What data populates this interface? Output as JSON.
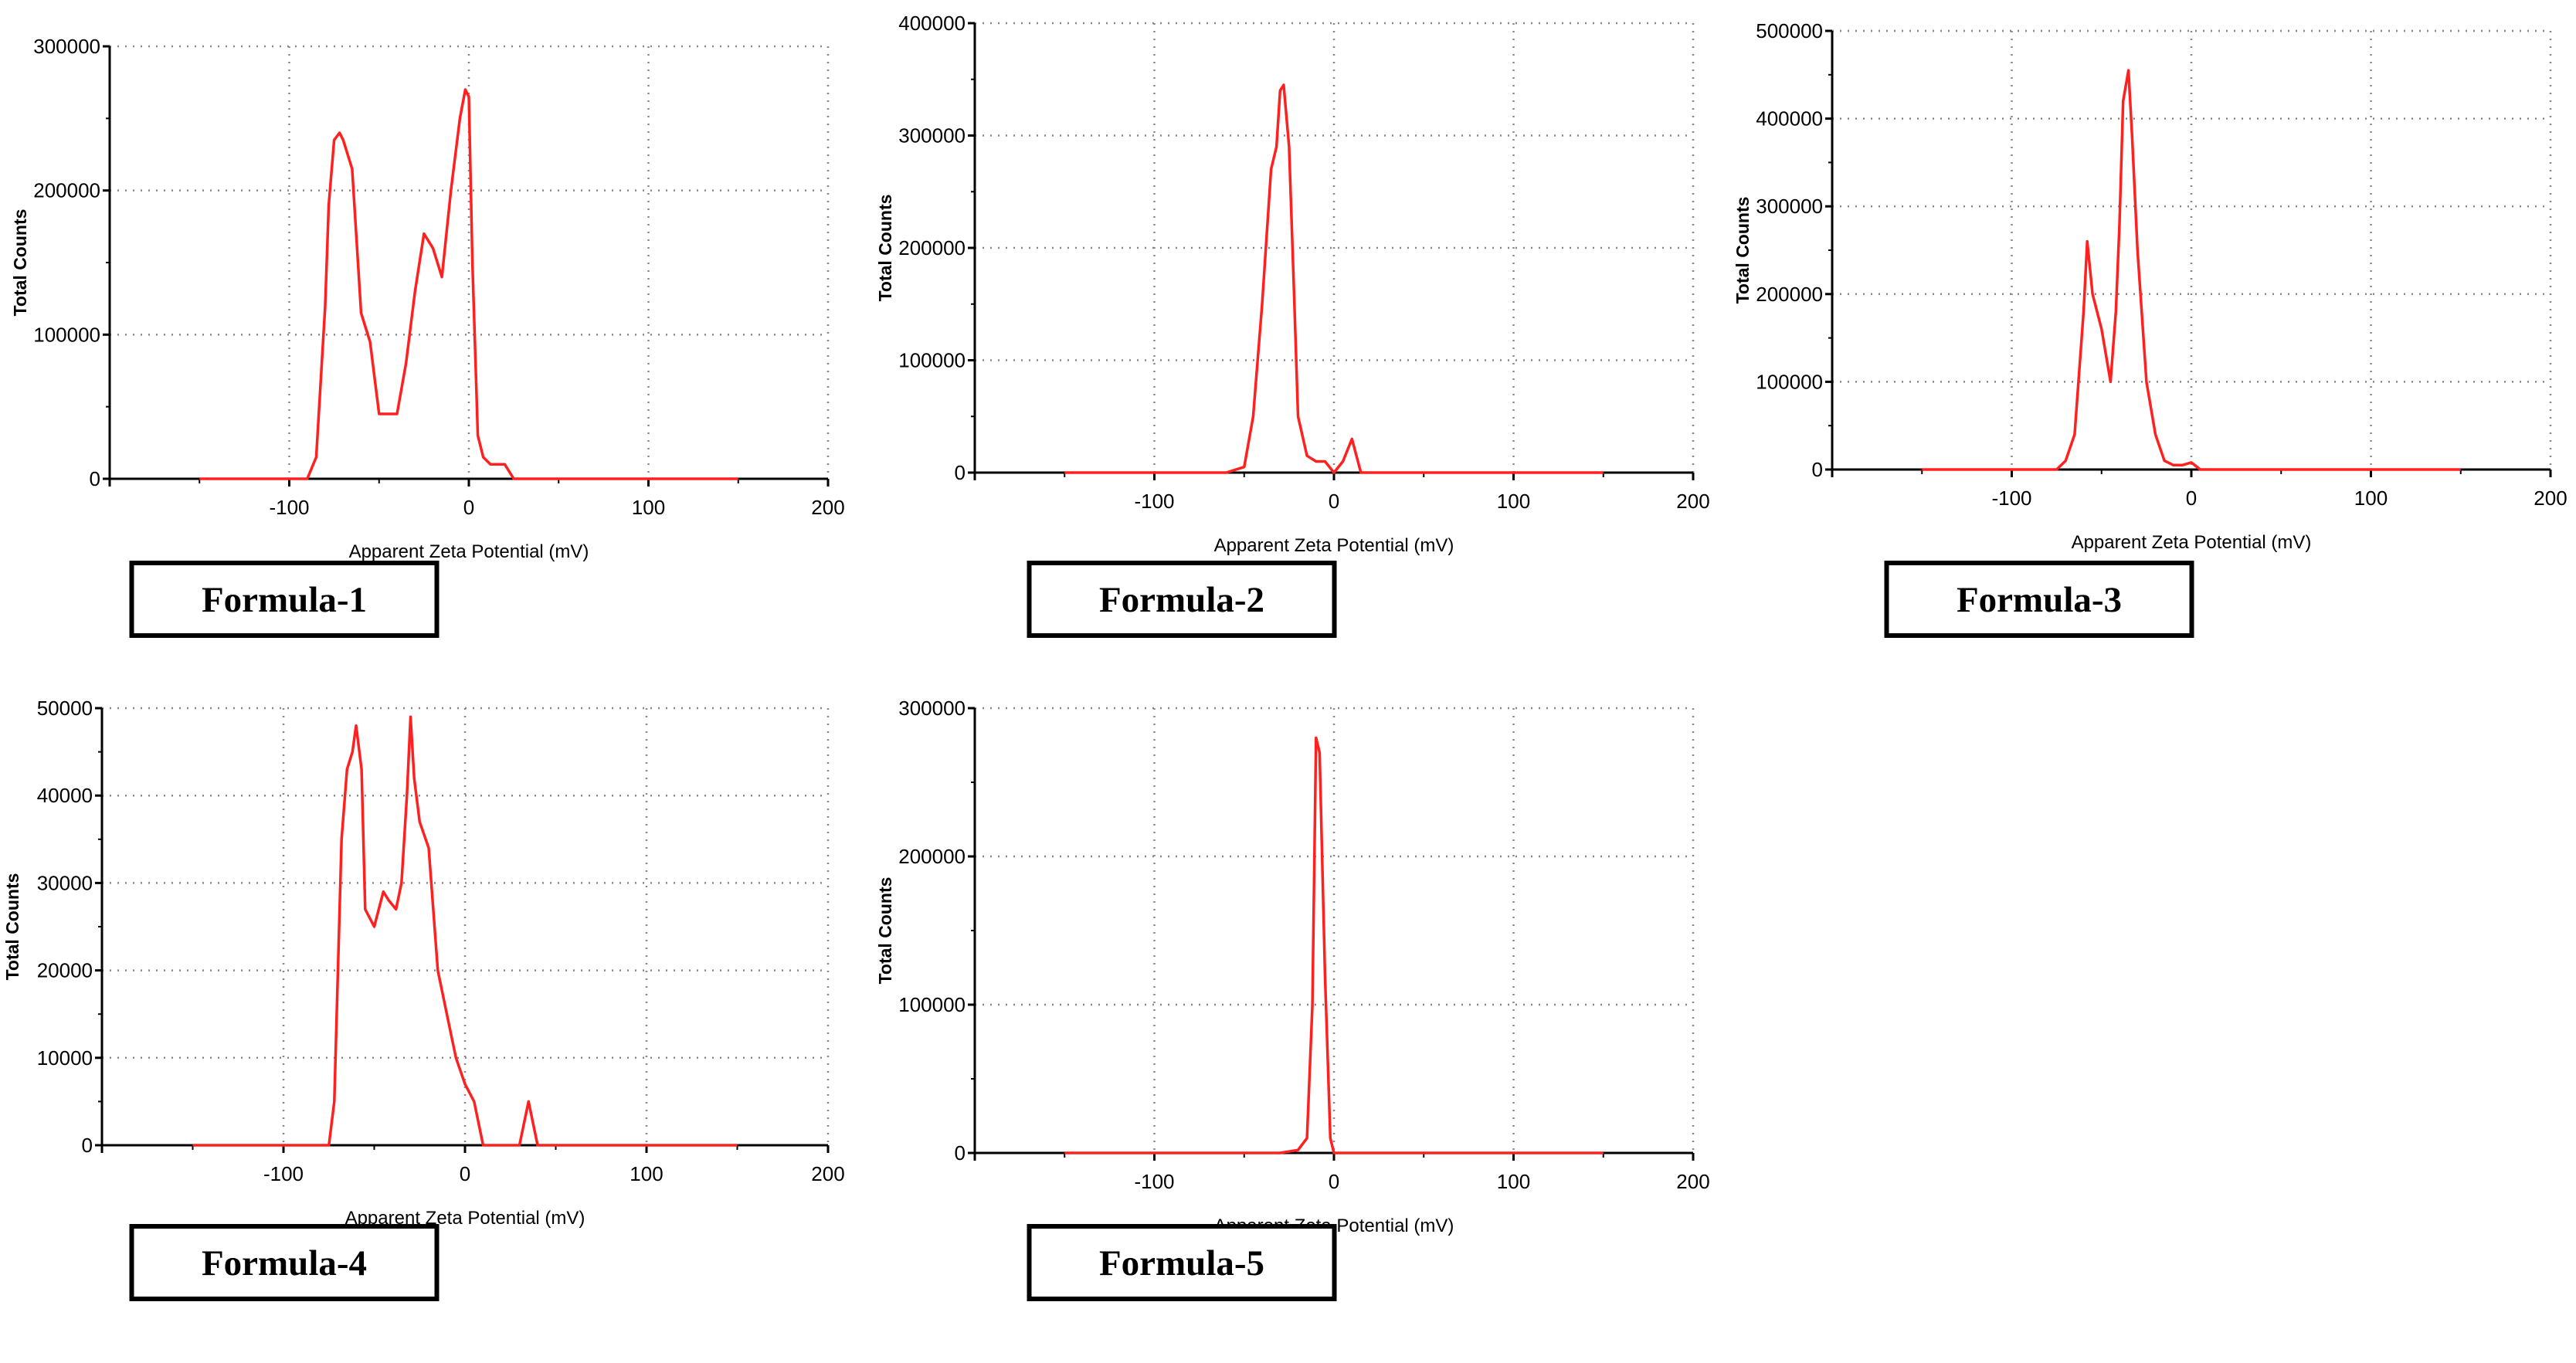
{
  "colors": {
    "series": "#ff2020",
    "axis": "#000000",
    "grid": "#888888",
    "background": "#ffffff"
  },
  "chart_data": [
    {
      "type": "line",
      "caption": "Formula-1",
      "xlabel": "Apparent Zeta Potential (mV)",
      "ylabel": "Total Counts",
      "xlim": [
        -200,
        200
      ],
      "ylim": [
        0,
        300000
      ],
      "xticks": [
        -100,
        0,
        100,
        200
      ],
      "xtick_labels": [
        "-100",
        "0",
        "100",
        "200"
      ],
      "yticks": [
        0,
        100000,
        200000,
        300000
      ],
      "ytick_labels": [
        "0",
        "100000",
        "200000",
        "300000"
      ],
      "grid": true,
      "series": [
        {
          "x": [
            -150,
            -100,
            -90,
            -85,
            -80,
            -78,
            -75,
            -72,
            -70,
            -65,
            -60,
            -55,
            -50,
            -45,
            -40,
            -35,
            -30,
            -25,
            -20,
            -15,
            -10,
            -5,
            -2,
            0,
            2,
            5,
            8,
            12,
            15,
            20,
            25,
            30,
            40,
            100,
            150
          ],
          "y": [
            0,
            0,
            0,
            15000,
            120000,
            190000,
            235000,
            240000,
            235000,
            215000,
            115000,
            95000,
            45000,
            45000,
            45000,
            80000,
            130000,
            170000,
            160000,
            140000,
            200000,
            250000,
            270000,
            265000,
            150000,
            30000,
            15000,
            10000,
            10000,
            10000,
            0,
            0,
            0,
            0,
            0
          ]
        }
      ]
    },
    {
      "type": "line",
      "caption": "Formula-2",
      "xlabel": "Apparent Zeta Potential (mV)",
      "ylabel": "Total Counts",
      "xlim": [
        -200,
        200
      ],
      "ylim": [
        0,
        400000
      ],
      "xticks": [
        -100,
        0,
        100,
        200
      ],
      "xtick_labels": [
        "-100",
        "0",
        "100",
        "200"
      ],
      "yticks": [
        0,
        100000,
        200000,
        300000,
        400000
      ],
      "ytick_labels": [
        "0",
        "100000",
        "200000",
        "300000",
        "400000"
      ],
      "grid": true,
      "series": [
        {
          "x": [
            -150,
            -60,
            -50,
            -45,
            -40,
            -35,
            -32,
            -30,
            -28,
            -25,
            -22,
            -20,
            -15,
            -10,
            -5,
            0,
            5,
            10,
            15,
            20,
            150
          ],
          "y": [
            0,
            0,
            5000,
            50000,
            150000,
            270000,
            290000,
            340000,
            345000,
            290000,
            150000,
            50000,
            15000,
            10000,
            10000,
            0,
            10000,
            30000,
            0,
            0,
            0
          ]
        }
      ]
    },
    {
      "type": "line",
      "caption": "Formula-3",
      "xlabel": "Apparent Zeta Potential (mV)",
      "ylabel": "Total Counts",
      "xlim": [
        -200,
        200
      ],
      "ylim": [
        0,
        500000
      ],
      "xticks": [
        -100,
        0,
        100,
        200
      ],
      "xtick_labels": [
        "-100",
        "0",
        "100",
        "200"
      ],
      "yticks": [
        0,
        100000,
        200000,
        300000,
        400000,
        500000
      ],
      "ytick_labels": [
        "0",
        "100000",
        "200000",
        "300000",
        "400000",
        "500000"
      ],
      "grid": true,
      "series": [
        {
          "x": [
            -150,
            -75,
            -70,
            -65,
            -60,
            -58,
            -55,
            -50,
            -45,
            -42,
            -40,
            -38,
            -35,
            -33,
            -30,
            -25,
            -20,
            -15,
            -10,
            -5,
            0,
            5,
            150
          ],
          "y": [
            0,
            0,
            10000,
            40000,
            180000,
            260000,
            200000,
            160000,
            100000,
            180000,
            280000,
            420000,
            455000,
            380000,
            250000,
            100000,
            40000,
            10000,
            5000,
            5000,
            8000,
            0,
            0
          ]
        }
      ]
    },
    {
      "type": "line",
      "caption": "Formula-4",
      "xlabel": "Apparent Zeta Potential (mV)",
      "ylabel": "Total Counts",
      "xlim": [
        -200,
        200
      ],
      "ylim": [
        0,
        50000
      ],
      "xticks": [
        -100,
        0,
        100,
        200
      ],
      "xtick_labels": [
        "-100",
        "0",
        "100",
        "200"
      ],
      "yticks": [
        0,
        10000,
        20000,
        30000,
        40000,
        50000
      ],
      "ytick_labels": [
        "0",
        "10000",
        "20000",
        "30000",
        "40000",
        "50000"
      ],
      "grid": true,
      "series": [
        {
          "x": [
            -150,
            -100,
            -75,
            -72,
            -70,
            -68,
            -65,
            -62,
            -60,
            -57,
            -55,
            -50,
            -45,
            -42,
            -38,
            -35,
            -32,
            -30,
            -28,
            -25,
            -20,
            -15,
            -10,
            -5,
            0,
            5,
            10,
            15,
            20,
            25,
            30,
            35,
            40,
            45,
            150
          ],
          "y": [
            0,
            0,
            0,
            5000,
            20000,
            35000,
            43000,
            45000,
            48000,
            43000,
            27000,
            25000,
            29000,
            28000,
            27000,
            30000,
            40000,
            49000,
            42000,
            37000,
            34000,
            20000,
            15000,
            10000,
            7000,
            5000,
            0,
            0,
            0,
            0,
            0,
            5000,
            0,
            0,
            0
          ]
        }
      ]
    },
    {
      "type": "line",
      "caption": "Formula-5",
      "xlabel": "Apparent Zeta Potential (mV)",
      "ylabel": "Total Counts",
      "xlim": [
        -200,
        200
      ],
      "ylim": [
        0,
        300000
      ],
      "xticks": [
        -100,
        0,
        100,
        200
      ],
      "xtick_labels": [
        "-100",
        "0",
        "100",
        "200"
      ],
      "yticks": [
        0,
        100000,
        200000,
        300000
      ],
      "ytick_labels": [
        "0",
        "100000",
        "200000",
        "300000"
      ],
      "grid": true,
      "series": [
        {
          "x": [
            -150,
            -30,
            -20,
            -15,
            -12,
            -10,
            -8,
            -5,
            -2,
            0,
            5,
            150
          ],
          "y": [
            0,
            0,
            2000,
            10000,
            100000,
            280000,
            270000,
            120000,
            10000,
            0,
            0,
            0
          ]
        }
      ]
    }
  ]
}
